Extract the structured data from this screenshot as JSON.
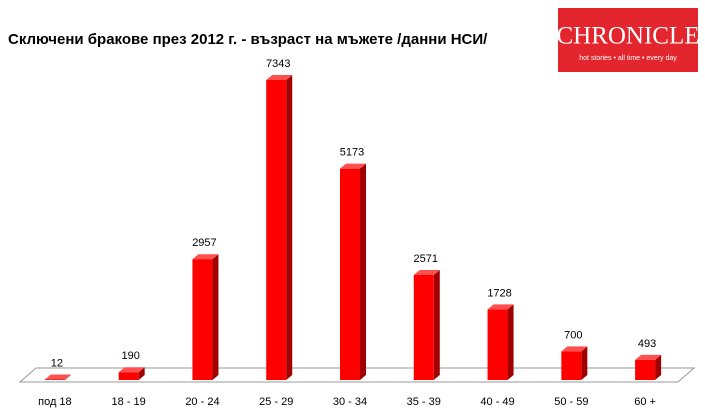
{
  "chart_data": {
    "type": "bar",
    "title": "Сключени бракове през 2012 г. - възраст на мъжете /данни НСИ/",
    "categories": [
      "под 18",
      "18 - 19",
      "20 - 24",
      "25 - 29",
      "30 - 34",
      "35 - 39",
      "40 - 49",
      "50 - 59",
      "60 +"
    ],
    "values": [
      12,
      190,
      2957,
      7343,
      5173,
      2571,
      1728,
      700,
      493
    ],
    "color": "#ff0000"
  },
  "logo": {
    "name": "CHRONICLE",
    "tagline": "hot stories • all time • every day"
  }
}
